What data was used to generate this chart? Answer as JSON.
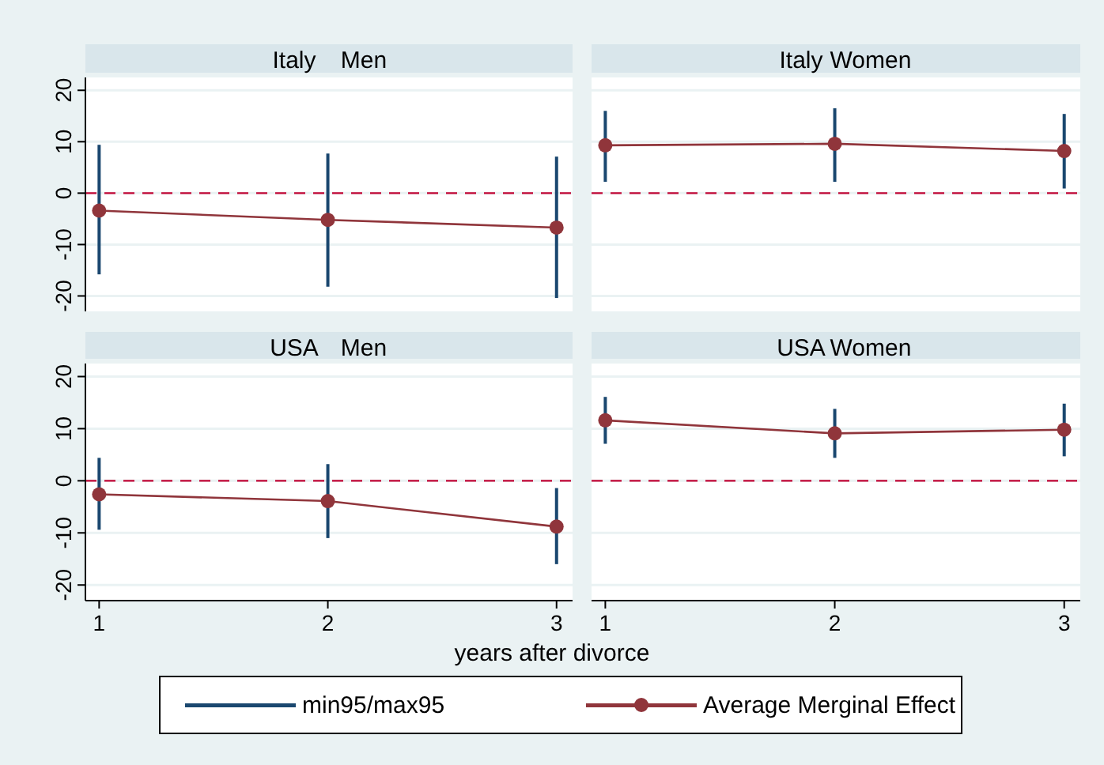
{
  "chart_data": [
    {
      "type": "line",
      "title": "Italy",
      "subtitle": "Men",
      "x": [
        1,
        2,
        3
      ],
      "xlim": [
        0.94,
        3.07
      ],
      "ylim": [
        -23,
        22.5
      ],
      "yticks": [
        -20,
        -10,
        0,
        10,
        20
      ],
      "grid": "y",
      "tick_labels": "y",
      "marker": "circle",
      "ref_lines": [
        {
          "axis": "y",
          "value": 0,
          "color": "#c10534",
          "line_style": "dashed"
        }
      ],
      "series": [
        {
          "type": "bar",
          "color": "#1a476f",
          "base": [
            -15.8,
            -18.2,
            -20.4
          ],
          "values": [
            25.2,
            25.9,
            27.5
          ]
        },
        {
          "type": "line",
          "color": "#90353b",
          "values": [
            -3.4,
            -5.2,
            -6.7
          ]
        }
      ]
    },
    {
      "type": "line",
      "title": "Italy",
      "subtitle": "Women",
      "x": [
        1,
        2,
        3
      ],
      "xlim": [
        0.94,
        3.07
      ],
      "ylim": [
        -23,
        22.5
      ],
      "yticks": [
        -20,
        -10,
        0,
        10,
        20
      ],
      "grid": "y",
      "tick_labels": false,
      "marker": "circle",
      "ref_lines": [
        {
          "axis": "y",
          "value": 0,
          "color": "#c10534",
          "line_style": "dashed"
        }
      ],
      "series": [
        {
          "type": "bar",
          "color": "#1a476f",
          "base": [
            2.2,
            2.2,
            0.9
          ],
          "values": [
            13.8,
            14.3,
            14.5
          ]
        },
        {
          "type": "line",
          "color": "#90353b",
          "values": [
            9.3,
            9.6,
            8.2
          ]
        }
      ]
    },
    {
      "type": "line",
      "title": "USA",
      "subtitle": "Men",
      "xlabel": "years after divorce",
      "x": [
        1,
        2,
        3
      ],
      "xlim": [
        0.94,
        3.07
      ],
      "xticks": [
        1,
        2,
        3
      ],
      "ylim": [
        -23,
        22.5
      ],
      "yticks": [
        -20,
        -10,
        0,
        10,
        20
      ],
      "grid": "y",
      "legend": "bottom",
      "marker": "circle",
      "ref_lines": [
        {
          "axis": "y",
          "value": 0,
          "color": "#c10534",
          "line_style": "dashed"
        }
      ],
      "series": [
        {
          "type": "bar",
          "name": "min95/max95",
          "color": "#1a476f",
          "base": [
            -9.4,
            -11.0,
            -16.0
          ],
          "values": [
            13.8,
            14.2,
            14.6
          ]
        },
        {
          "type": "line",
          "name": "Average Merginal Effect",
          "color": "#90353b",
          "values": [
            -2.6,
            -3.9,
            -8.8
          ]
        }
      ]
    },
    {
      "type": "line",
      "title": "USA",
      "subtitle": "Women",
      "x": [
        1,
        2,
        3
      ],
      "xlim": [
        0.94,
        3.07
      ],
      "xticks": [
        1,
        2,
        3
      ],
      "ylim": [
        -23,
        22.5
      ],
      "yticks": [
        -20,
        -10,
        0,
        10,
        20
      ],
      "grid": "y",
      "tick_labels": "x",
      "marker": "circle",
      "ref_lines": [
        {
          "axis": "y",
          "value": 0,
          "color": "#c10534",
          "line_style": "dashed"
        }
      ],
      "series": [
        {
          "type": "bar",
          "color": "#1a476f",
          "base": [
            7.1,
            4.4,
            4.7
          ],
          "values": [
            9.0,
            9.4,
            10.1
          ]
        },
        {
          "type": "line",
          "color": "#90353b",
          "values": [
            11.6,
            9.1,
            9.8
          ]
        }
      ]
    }
  ]
}
